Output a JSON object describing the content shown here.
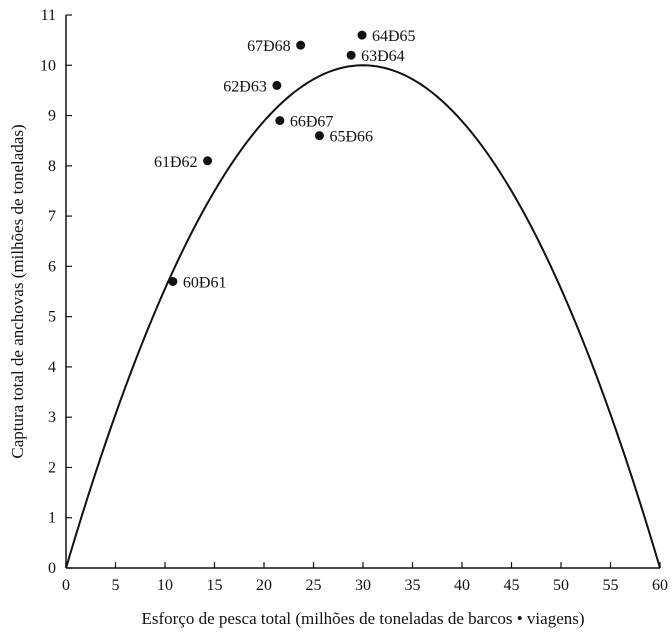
{
  "chart_data": {
    "type": "scatter",
    "title": "",
    "xlabel": "Esforço de pesca total (milhões de toneladas de barcos • viagens)",
    "ylabel": "Captura total de anchovas (milhões de toneladas)",
    "xlim": [
      0,
      60
    ],
    "ylim": [
      0,
      11
    ],
    "xticks": [
      0,
      5,
      10,
      15,
      20,
      25,
      30,
      35,
      40,
      45,
      50,
      55,
      60
    ],
    "yticks": [
      0,
      1,
      2,
      3,
      4,
      5,
      6,
      7,
      8,
      9,
      10,
      11
    ],
    "grid": false,
    "legend": "none",
    "points": [
      {
        "label": "60Ð61",
        "x": 10.8,
        "y": 5.7
      },
      {
        "label": "61Ð62",
        "x": 14.3,
        "y": 8.1
      },
      {
        "label": "62Ð63",
        "x": 21.3,
        "y": 9.6
      },
      {
        "label": "63Ð64",
        "x": 28.8,
        "y": 10.2
      },
      {
        "label": "64Ð65",
        "x": 29.9,
        "y": 10.6
      },
      {
        "label": "65Ð66",
        "x": 25.6,
        "y": 8.6
      },
      {
        "label": "66Ð67",
        "x": 21.6,
        "y": 8.9
      },
      {
        "label": "67Ð68",
        "x": 23.7,
        "y": 10.4
      }
    ],
    "curve": {
      "type": "parabola",
      "description": "",
      "x": [
        0,
        5,
        10,
        15,
        20,
        25,
        30,
        35,
        40,
        45,
        50,
        55,
        60
      ],
      "y": [
        0,
        3.06,
        5.56,
        7.5,
        8.89,
        9.72,
        10.0,
        9.72,
        8.89,
        7.5,
        5.56,
        3.06,
        0
      ]
    }
  }
}
